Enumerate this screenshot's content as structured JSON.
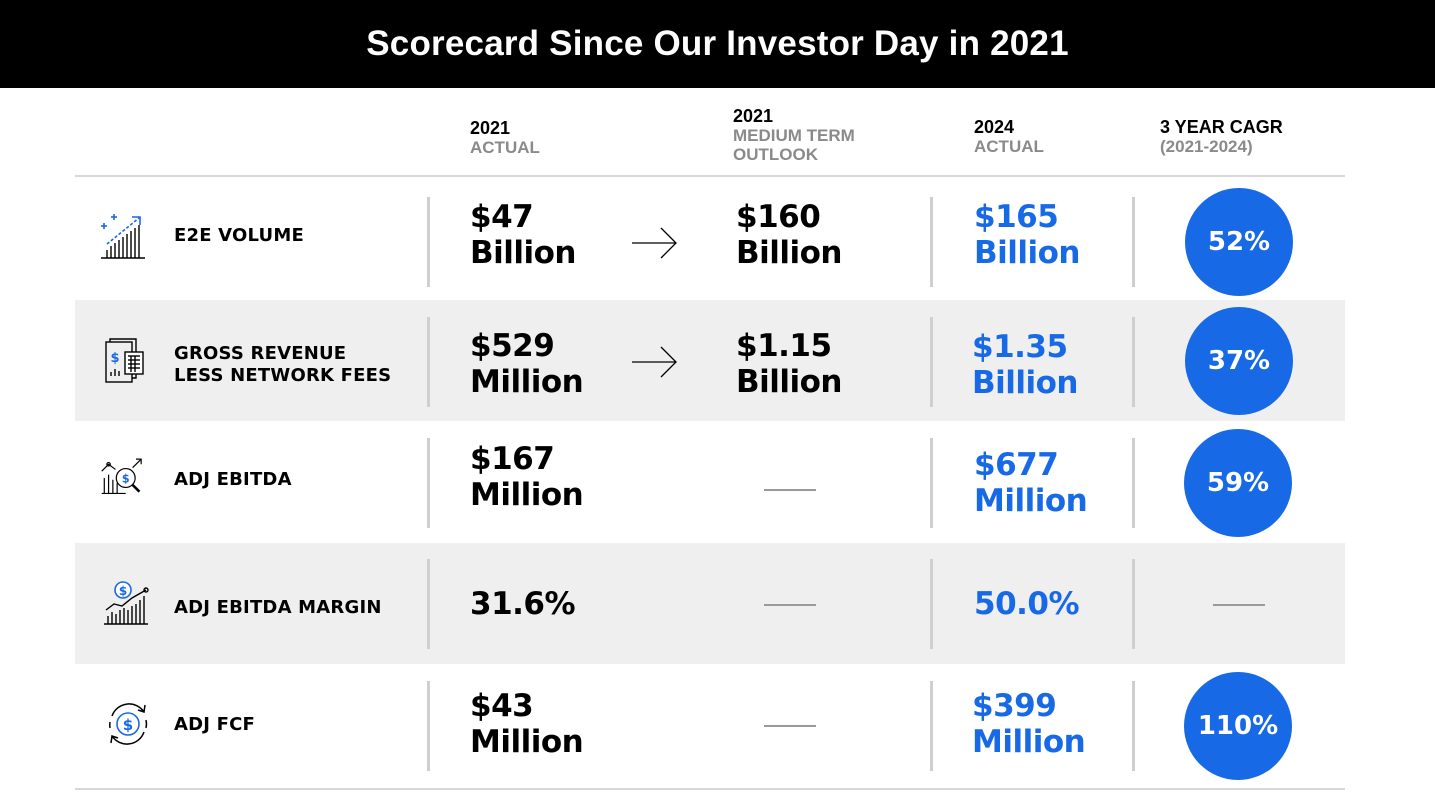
{
  "title": "Scorecard Since Our Investor Day in 2021",
  "columns": {
    "actual_2021": {
      "year": "2021",
      "sub": "ACTUAL"
    },
    "outlook_2021": {
      "year": "2021",
      "sub1": "MEDIUM TERM",
      "sub2": "OUTLOOK"
    },
    "actual_2024": {
      "year": "2024",
      "sub": "ACTUAL"
    },
    "cagr": {
      "year": "3 YEAR CAGR",
      "sub": "(2021-2024)"
    }
  },
  "accent_color": "#1769e6",
  "rows": [
    {
      "label1": "E2E VOLUME",
      "label2": "",
      "icon": "growth-chart-icon",
      "a2021_1": "$47",
      "a2021_2": "Billion",
      "outlook_1": "$160",
      "outlook_2": "Billion",
      "a2024_1": "$165",
      "a2024_2": "Billion",
      "cagr": "52%"
    },
    {
      "label1": "GROSS REVENUE",
      "label2": "LESS NETWORK FEES",
      "icon": "revenue-document-icon",
      "a2021_1": "$529",
      "a2021_2": "Million",
      "outlook_1": "$1.15",
      "outlook_2": "Billion",
      "a2024_1": "$1.35",
      "a2024_2": "Billion",
      "cagr": "37%"
    },
    {
      "label1": "ADJ EBITDA",
      "label2": "",
      "icon": "analytics-magnifier-icon",
      "a2021_1": "$167",
      "a2021_2": "Million",
      "outlook_1": "",
      "outlook_2": "",
      "a2024_1": "$677",
      "a2024_2": "Million",
      "cagr": "59%"
    },
    {
      "label1": "ADJ EBITDA MARGIN",
      "label2": "",
      "icon": "dollar-chart-icon",
      "a2021_1": "31.6%",
      "a2021_2": "",
      "outlook_1": "",
      "outlook_2": "",
      "a2024_1": "50.0%",
      "a2024_2": "",
      "cagr": ""
    },
    {
      "label1": "ADJ FCF",
      "label2": "",
      "icon": "cash-cycle-icon",
      "a2021_1": "$43",
      "a2021_2": "Million",
      "outlook_1": "",
      "outlook_2": "",
      "a2024_1": "$399",
      "a2024_2": "Million",
      "cagr": "110%"
    }
  ]
}
